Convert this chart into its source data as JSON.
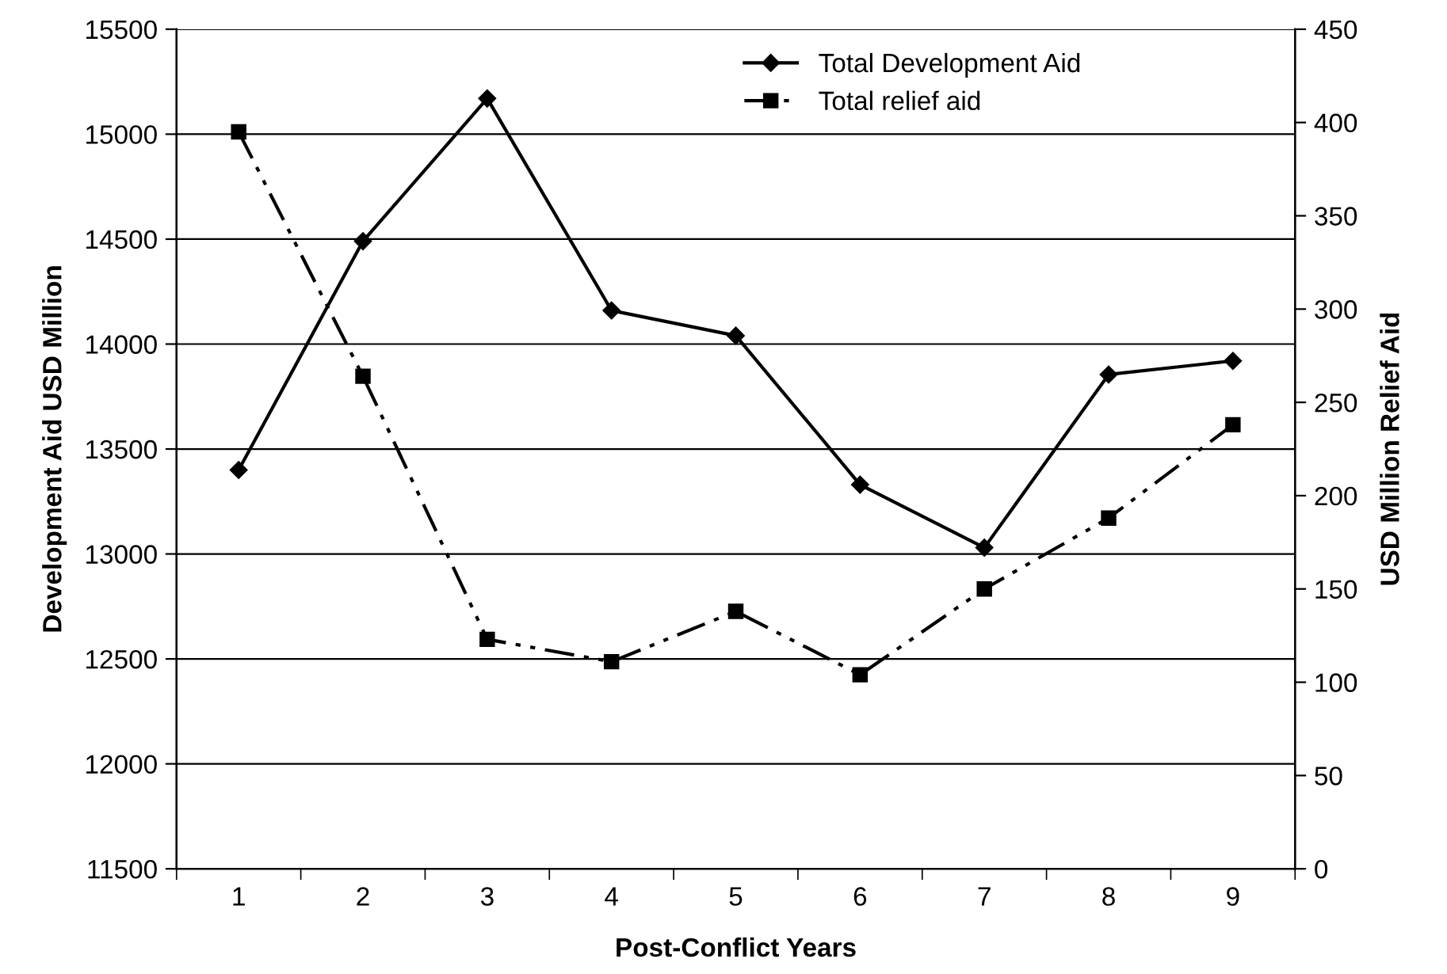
{
  "chart_data": {
    "type": "line",
    "xlabel": "Post-Conflict Years",
    "ylabel": "Development Aid USD Million",
    "y2label": "USD Million Relief Aid",
    "categories": [
      "1",
      "2",
      "3",
      "4",
      "5",
      "6",
      "7",
      "8",
      "9"
    ],
    "series": [
      {
        "name": "Total Development Aid",
        "color": "#000000",
        "marker": "diamond",
        "line_style": "solid",
        "values": [
          13400,
          14490,
          15170,
          14160,
          14040,
          13330,
          13030,
          13855,
          13920
        ]
      },
      {
        "name": "Total relief aid",
        "color": "#000000",
        "marker": "square",
        "line_style": "dashed",
        "axis": "y2",
        "values": [
          395,
          264,
          123,
          111,
          138,
          104,
          150,
          188,
          238
        ]
      }
    ],
    "ylim": [
      11500,
      15500
    ],
    "yticks": [
      11500,
      12000,
      12500,
      13000,
      13500,
      14000,
      14500,
      15000,
      15500
    ],
    "y2lim": [
      0,
      450
    ],
    "y2ticks": [
      0,
      50,
      100,
      150,
      200,
      250,
      300,
      350,
      400,
      450
    ],
    "grid": "y",
    "legend": "top right"
  }
}
